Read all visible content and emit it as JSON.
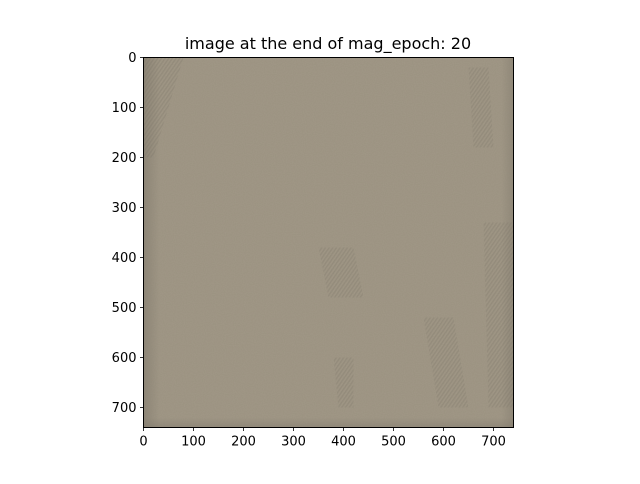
{
  "chart_data": {
    "type": "heatmap",
    "title": "image at the end of mag_epoch: 20",
    "xlabel": "",
    "ylabel": "",
    "xlim": [
      0,
      740
    ],
    "ylim": [
      740,
      0
    ],
    "x_ticks": [
      0,
      100,
      200,
      300,
      400,
      500,
      600,
      700
    ],
    "y_ticks": [
      0,
      100,
      200,
      300,
      400,
      500,
      600,
      700
    ],
    "image_base_color": "#9a917f",
    "image_description_color_edge": "#8d8677",
    "grid": false,
    "legend": "none"
  }
}
